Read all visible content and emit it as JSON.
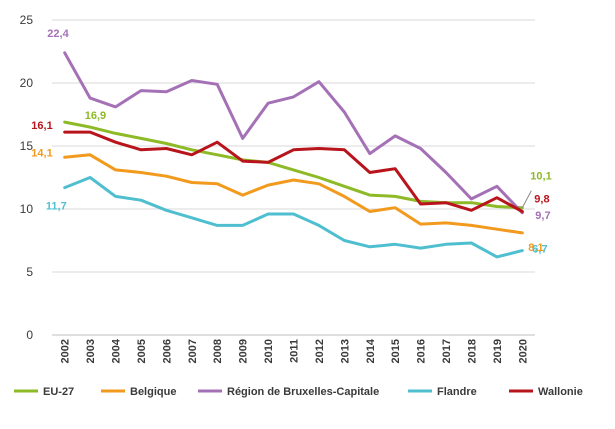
{
  "chart_data": {
    "type": "line",
    "title": "",
    "xlabel": "",
    "ylabel": "",
    "ylim": [
      0,
      25
    ],
    "y_ticks": [
      0,
      5,
      10,
      15,
      20,
      25
    ],
    "grid": true,
    "legend_position": "bottom",
    "categories": [
      "2002",
      "2003",
      "2004",
      "2005",
      "2006",
      "2007",
      "2008",
      "2009",
      "2010",
      "2011",
      "2012",
      "2013",
      "2014",
      "2015",
      "2016",
      "2017",
      "2018",
      "2019",
      "2020"
    ],
    "series": [
      {
        "name": "EU-27",
        "color": "#8dba26",
        "values": [
          16.9,
          16.5,
          16.0,
          15.6,
          15.2,
          14.7,
          14.3,
          13.9,
          13.7,
          13.1,
          12.5,
          11.8,
          11.1,
          11.0,
          10.6,
          10.5,
          10.5,
          10.2,
          10.1
        ],
        "labels": [
          {
            "index": 0,
            "text": "16,9"
          },
          {
            "index": 18,
            "text": "10,1"
          }
        ]
      },
      {
        "name": "Belgique",
        "color": "#f29a1d",
        "values": [
          14.1,
          14.3,
          13.1,
          12.9,
          12.6,
          12.1,
          12.0,
          11.1,
          11.9,
          12.3,
          12.0,
          11.0,
          9.8,
          10.1,
          8.8,
          8.9,
          8.7,
          8.4,
          8.1
        ],
        "labels": [
          {
            "index": 0,
            "text": "14,1"
          },
          {
            "index": 18,
            "text": "8,1"
          }
        ]
      },
      {
        "name": "Région de Bruxelles-Capitale",
        "color": "#a571b6",
        "values": [
          22.4,
          18.8,
          18.1,
          19.4,
          19.3,
          20.2,
          19.9,
          15.6,
          18.4,
          18.9,
          20.1,
          17.7,
          14.4,
          15.8,
          14.8,
          12.9,
          10.8,
          11.8,
          9.7
        ],
        "labels": [
          {
            "index": 0,
            "text": "22,4"
          },
          {
            "index": 18,
            "text": "9,7"
          }
        ]
      },
      {
        "name": "Flandre",
        "color": "#4fbfd0",
        "values": [
          11.7,
          12.5,
          11.0,
          10.7,
          9.9,
          9.3,
          8.7,
          8.7,
          9.6,
          9.6,
          8.7,
          7.5,
          7.0,
          7.2,
          6.9,
          7.2,
          7.3,
          6.2,
          6.7
        ],
        "labels": [
          {
            "index": 0,
            "text": "11,7"
          },
          {
            "index": 18,
            "text": "6,7"
          }
        ]
      },
      {
        "name": "Wallonie",
        "color": "#b8141c",
        "values": [
          16.1,
          16.1,
          15.3,
          14.7,
          14.8,
          14.3,
          15.3,
          13.8,
          13.7,
          14.7,
          14.8,
          14.7,
          12.9,
          13.2,
          10.4,
          10.5,
          9.9,
          10.9,
          9.8
        ],
        "labels": [
          {
            "index": 0,
            "text": "16,1"
          },
          {
            "index": 18,
            "text": "9,8"
          }
        ]
      }
    ]
  }
}
